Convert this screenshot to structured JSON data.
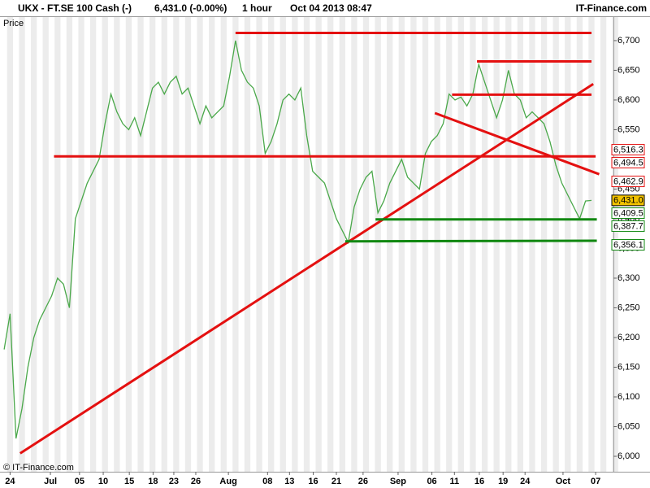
{
  "header": {
    "symbol": "UKX - FT.SE 100 Cash (-)",
    "quote": "6,431.0 (-0.00%)",
    "interval": "1 hour",
    "timestamp": "Oct 04 2013 08:47",
    "brand": "IT-Finance.com"
  },
  "chart_data": {
    "type": "line",
    "y_label": "Price",
    "copyright": "© IT-Finance.com",
    "color": "#4aa84a",
    "values": [
      6180,
      6240,
      6030,
      6080,
      6150,
      6200,
      6230,
      6250,
      6270,
      6300,
      6290,
      6250,
      6400,
      6430,
      6460,
      6480,
      6500,
      6560,
      6610,
      6580,
      6560,
      6550,
      6570,
      6540,
      6580,
      6620,
      6630,
      6610,
      6630,
      6640,
      6610,
      6620,
      6590,
      6560,
      6590,
      6570,
      6580,
      6590,
      6640,
      6700,
      6650,
      6630,
      6620,
      6590,
      6510,
      6530,
      6560,
      6600,
      6610,
      6600,
      6620,
      6540,
      6480,
      6470,
      6460,
      6430,
      6400,
      6380,
      6360,
      6420,
      6450,
      6470,
      6480,
      6410,
      6430,
      6460,
      6480,
      6500,
      6470,
      6460,
      6450,
      6510,
      6530,
      6540,
      6560,
      6610,
      6600,
      6605,
      6590,
      6610,
      6660,
      6630,
      6600,
      6570,
      6600,
      6650,
      6610,
      6600,
      6570,
      6580,
      6570,
      6560,
      6530,
      6490,
      6460,
      6440,
      6420,
      6400,
      6430,
      6431
    ],
    "xlim": [
      -0.7,
      102.7
    ],
    "xticks": [
      {
        "value": 1,
        "label": "24"
      },
      {
        "value": 7.8,
        "label": "Jul"
      },
      {
        "value": 12.7,
        "label": "05"
      },
      {
        "value": 16.7,
        "label": "10"
      },
      {
        "value": 21.1,
        "label": "15"
      },
      {
        "value": 25.1,
        "label": "18"
      },
      {
        "value": 28.6,
        "label": "23"
      },
      {
        "value": 32.3,
        "label": "26"
      },
      {
        "value": 37.8,
        "label": "Aug"
      },
      {
        "value": 44.4,
        "label": "08"
      },
      {
        "value": 48.1,
        "label": "13"
      },
      {
        "value": 52.1,
        "label": "16"
      },
      {
        "value": 56,
        "label": "21"
      },
      {
        "value": 60.5,
        "label": "26"
      },
      {
        "value": 66.4,
        "label": "Sep"
      },
      {
        "value": 72.1,
        "label": "06"
      },
      {
        "value": 75.9,
        "label": "11"
      },
      {
        "value": 80.1,
        "label": "16"
      },
      {
        "value": 84.1,
        "label": "19"
      },
      {
        "value": 87.8,
        "label": "24"
      },
      {
        "value": 94.2,
        "label": "Oct"
      },
      {
        "value": 99.7,
        "label": "07"
      }
    ],
    "ylim": [
      5974,
      6741
    ],
    "yticks": [
      {
        "value": 6000,
        "label": "6,000"
      },
      {
        "value": 6050,
        "label": "6,050"
      },
      {
        "value": 6100,
        "label": "6,100"
      },
      {
        "value": 6150,
        "label": "6,150"
      },
      {
        "value": 6200,
        "label": "6,200"
      },
      {
        "value": 6250,
        "label": "6,250"
      },
      {
        "value": 6300,
        "label": "6,300"
      },
      {
        "value": 6350,
        "label": "6,350"
      },
      {
        "value": 6400,
        "label": "6,400"
      },
      {
        "value": 6450,
        "label": "6,450"
      },
      {
        "value": 6550,
        "label": "6,550"
      },
      {
        "value": 6600,
        "label": "6,600"
      },
      {
        "value": 6650,
        "label": "6,650"
      },
      {
        "value": 6700,
        "label": "6,700"
      }
    ],
    "annotations": [
      {
        "x1": 39,
        "y1": 6713,
        "x2": 99,
        "y2": 6713,
        "color": "#e41010"
      },
      {
        "x1": 79.7,
        "y1": 6665,
        "x2": 99,
        "y2": 6665,
        "color": "#e41010"
      },
      {
        "x1": 75.5,
        "y1": 6609,
        "x2": 99,
        "y2": 6609,
        "color": "#e41010"
      },
      {
        "x1": 8.4,
        "y1": 6505,
        "x2": 99.7,
        "y2": 6505,
        "color": "#e41010"
      },
      {
        "x1": 2.7,
        "y1": 6005,
        "x2": 99.3,
        "y2": 6627,
        "color": "#e41010"
      },
      {
        "x1": 72.6,
        "y1": 6578,
        "x2": 100.3,
        "y2": 6475,
        "color": "#e41010"
      },
      {
        "x1": 62.6,
        "y1": 6399,
        "x2": 99.9,
        "y2": 6399,
        "color": "#118811"
      },
      {
        "x1": 57.5,
        "y1": 6362,
        "x2": 99.9,
        "y2": 6363,
        "color": "#118811"
      }
    ],
    "levels": [
      {
        "value": 6516.3,
        "label": "6,516.3",
        "color": "#e41010"
      },
      {
        "value": 6494.5,
        "label": "6,494.5",
        "color": "#e41010"
      },
      {
        "value": 6462.9,
        "label": "6,462.9",
        "color": "#e41010"
      },
      {
        "value": 6431.0,
        "label": "6,431.0",
        "color": "#f2c200",
        "current": true
      },
      {
        "value": 6409.5,
        "label": "6,409.5",
        "color": "#118811"
      },
      {
        "value": 6387.7,
        "label": "6,387.7",
        "color": "#118811"
      },
      {
        "value": 6356.1,
        "label": "6,356.1",
        "color": "#118811"
      }
    ]
  }
}
